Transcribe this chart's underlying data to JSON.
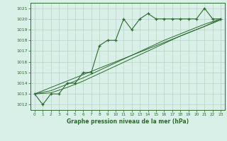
{
  "x": [
    0,
    1,
    2,
    3,
    4,
    5,
    6,
    7,
    8,
    9,
    10,
    11,
    12,
    13,
    14,
    15,
    16,
    17,
    18,
    19,
    20,
    21,
    22,
    23
  ],
  "pressure": [
    1013,
    1012,
    1013,
    1013,
    1014,
    1014,
    1015,
    1015,
    1017.5,
    1018,
    1018,
    1020,
    1019,
    1020,
    1020.5,
    1020,
    1020,
    1020,
    1020,
    1020,
    1020,
    1021,
    1020,
    1020
  ],
  "trend1": [
    1013,
    1013.3,
    1013.6,
    1013.9,
    1014.2,
    1014.5,
    1014.8,
    1015.1,
    1015.4,
    1015.7,
    1016.0,
    1016.3,
    1016.6,
    1016.9,
    1017.2,
    1017.5,
    1017.8,
    1018.1,
    1018.4,
    1018.7,
    1019.0,
    1019.3,
    1019.6,
    1019.9
  ],
  "trend2": [
    1013,
    1013.15,
    1013.3,
    1013.6,
    1013.9,
    1014.2,
    1014.5,
    1014.85,
    1015.2,
    1015.55,
    1015.9,
    1016.25,
    1016.6,
    1016.95,
    1017.3,
    1017.65,
    1018.0,
    1018.3,
    1018.6,
    1018.9,
    1019.2,
    1019.5,
    1019.75,
    1020.0
  ],
  "trend3": [
    1013,
    1013.05,
    1013.1,
    1013.35,
    1013.6,
    1013.9,
    1014.2,
    1014.55,
    1014.9,
    1015.25,
    1015.6,
    1015.95,
    1016.3,
    1016.65,
    1017.0,
    1017.35,
    1017.7,
    1018.05,
    1018.4,
    1018.7,
    1019.0,
    1019.3,
    1019.65,
    1020.0
  ],
  "ylim": [
    1011.5,
    1021.5
  ],
  "yticks": [
    1012,
    1013,
    1014,
    1015,
    1016,
    1017,
    1018,
    1019,
    1020,
    1021
  ],
  "xlim": [
    -0.5,
    23.5
  ],
  "xticks": [
    0,
    1,
    2,
    3,
    4,
    5,
    6,
    7,
    8,
    9,
    10,
    11,
    12,
    13,
    14,
    15,
    16,
    17,
    18,
    19,
    20,
    21,
    22,
    23
  ],
  "xlabel": "Graphe pression niveau de la mer (hPa)",
  "line_color": "#2d6a2d",
  "bg_color": "#d8f0e8",
  "grid_color": "#b8d4c0"
}
